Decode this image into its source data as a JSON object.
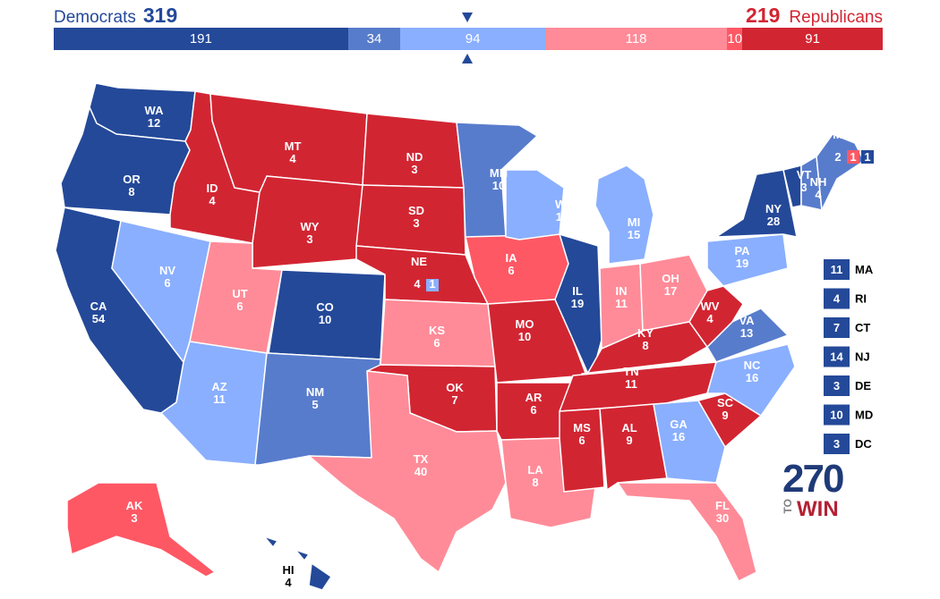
{
  "header": {
    "dem_label": "Democrats",
    "dem_total": "319",
    "rep_label": "Republicans",
    "rep_total": "219"
  },
  "bar_segments": [
    {
      "value": "191",
      "color": "#244999"
    },
    {
      "value": "34",
      "color": "#587ccc"
    },
    {
      "value": "94",
      "color": "#8aafff"
    },
    {
      "value": "118",
      "color": "#ff8b98"
    },
    {
      "value": "10",
      "color": "#ff5865"
    },
    {
      "value": "91",
      "color": "#d22532"
    }
  ],
  "colors": {
    "safe_dem": "#244999",
    "likely_dem": "#587ccc",
    "lean_dem": "#8aafff",
    "lean_rep": "#ff8b98",
    "likely_rep": "#ff5865",
    "safe_rep": "#d22532"
  },
  "states": [
    {
      "abbr": "WA",
      "ev": "12",
      "rating": "safe_dem"
    },
    {
      "abbr": "OR",
      "ev": "8",
      "rating": "safe_dem"
    },
    {
      "abbr": "CA",
      "ev": "54",
      "rating": "safe_dem"
    },
    {
      "abbr": "NV",
      "ev": "6",
      "rating": "lean_dem"
    },
    {
      "abbr": "ID",
      "ev": "4",
      "rating": "safe_rep"
    },
    {
      "abbr": "MT",
      "ev": "4",
      "rating": "safe_rep"
    },
    {
      "abbr": "WY",
      "ev": "3",
      "rating": "safe_rep"
    },
    {
      "abbr": "UT",
      "ev": "6",
      "rating": "lean_rep"
    },
    {
      "abbr": "AZ",
      "ev": "11",
      "rating": "lean_dem"
    },
    {
      "abbr": "CO",
      "ev": "10",
      "rating": "safe_dem"
    },
    {
      "abbr": "NM",
      "ev": "5",
      "rating": "likely_dem"
    },
    {
      "abbr": "ND",
      "ev": "3",
      "rating": "safe_rep"
    },
    {
      "abbr": "SD",
      "ev": "3",
      "rating": "safe_rep"
    },
    {
      "abbr": "NE",
      "ev": "4",
      "rating": "safe_rep"
    },
    {
      "abbr": "KS",
      "ev": "6",
      "rating": "lean_rep"
    },
    {
      "abbr": "OK",
      "ev": "7",
      "rating": "safe_rep"
    },
    {
      "abbr": "TX",
      "ev": "40",
      "rating": "lean_rep"
    },
    {
      "abbr": "MN",
      "ev": "10",
      "rating": "likely_dem"
    },
    {
      "abbr": "IA",
      "ev": "6",
      "rating": "likely_rep"
    },
    {
      "abbr": "MO",
      "ev": "10",
      "rating": "safe_rep"
    },
    {
      "abbr": "AR",
      "ev": "6",
      "rating": "safe_rep"
    },
    {
      "abbr": "LA",
      "ev": "8",
      "rating": "lean_rep"
    },
    {
      "abbr": "WI",
      "ev": "10",
      "rating": "lean_dem"
    },
    {
      "abbr": "IL",
      "ev": "19",
      "rating": "safe_dem"
    },
    {
      "abbr": "MI",
      "ev": "15",
      "rating": "lean_dem"
    },
    {
      "abbr": "IN",
      "ev": "11",
      "rating": "lean_rep"
    },
    {
      "abbr": "OH",
      "ev": "17",
      "rating": "lean_rep"
    },
    {
      "abbr": "KY",
      "ev": "8",
      "rating": "safe_rep"
    },
    {
      "abbr": "TN",
      "ev": "11",
      "rating": "safe_rep"
    },
    {
      "abbr": "MS",
      "ev": "6",
      "rating": "safe_rep"
    },
    {
      "abbr": "AL",
      "ev": "9",
      "rating": "safe_rep"
    },
    {
      "abbr": "GA",
      "ev": "16",
      "rating": "lean_dem"
    },
    {
      "abbr": "FL",
      "ev": "30",
      "rating": "lean_rep"
    },
    {
      "abbr": "SC",
      "ev": "9",
      "rating": "safe_rep"
    },
    {
      "abbr": "NC",
      "ev": "16",
      "rating": "lean_dem"
    },
    {
      "abbr": "VA",
      "ev": "13",
      "rating": "likely_dem"
    },
    {
      "abbr": "WV",
      "ev": "4",
      "rating": "safe_rep"
    },
    {
      "abbr": "PA",
      "ev": "19",
      "rating": "lean_dem"
    },
    {
      "abbr": "NY",
      "ev": "28",
      "rating": "safe_dem"
    },
    {
      "abbr": "VT",
      "ev": "3",
      "rating": "safe_dem"
    },
    {
      "abbr": "NH",
      "ev": "4",
      "rating": "likely_dem"
    },
    {
      "abbr": "ME",
      "ev": "",
      "rating": "likely_dem"
    },
    {
      "abbr": "AK",
      "ev": "3",
      "rating": "likely_rep"
    },
    {
      "abbr": "HI",
      "ev": "4",
      "rating": "safe_dem"
    }
  ],
  "maine_districts": [
    {
      "ev": "2",
      "rating": "likely_dem"
    },
    {
      "ev": "1",
      "rating": "likely_rep"
    },
    {
      "ev": "1",
      "rating": "safe_dem"
    }
  ],
  "nebraska_districts": [
    {
      "ev": "4",
      "rating": "safe_rep"
    },
    {
      "ev": "1",
      "rating": "lean_dem"
    }
  ],
  "small_states": [
    {
      "abbr": "MA",
      "ev": "11",
      "rating": "safe_dem"
    },
    {
      "abbr": "RI",
      "ev": "4",
      "rating": "safe_dem"
    },
    {
      "abbr": "CT",
      "ev": "7",
      "rating": "safe_dem"
    },
    {
      "abbr": "NJ",
      "ev": "14",
      "rating": "safe_dem"
    },
    {
      "abbr": "DE",
      "ev": "3",
      "rating": "safe_dem"
    },
    {
      "abbr": "MD",
      "ev": "10",
      "rating": "safe_dem"
    },
    {
      "abbr": "DC",
      "ev": "3",
      "rating": "safe_dem"
    }
  ],
  "logo": {
    "number": "270",
    "to": "TO",
    "win": "WIN"
  }
}
